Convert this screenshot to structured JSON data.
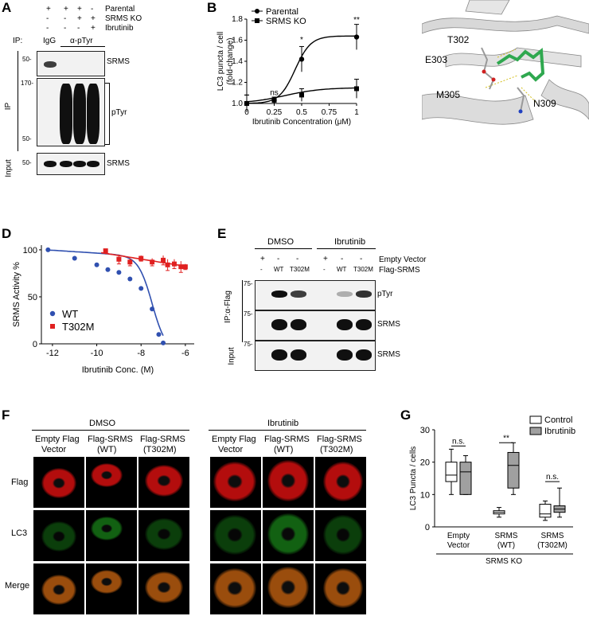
{
  "panel_A": {
    "label": "A",
    "conditions": [
      {
        "name": "Parental",
        "marks": [
          "+",
          "+",
          "+",
          "-"
        ]
      },
      {
        "name": "SRMS KO",
        "marks": [
          "-",
          "-",
          "+",
          "+"
        ]
      },
      {
        "name": "Ibrutinib",
        "marks": [
          "-",
          "-",
          "-",
          "+"
        ]
      }
    ],
    "ip_label": "IP:",
    "igg": "IgG",
    "antibody": "α-pTyr",
    "row_ip": "IP",
    "row_input": "Input",
    "blots": [
      {
        "mw": [
          "50-"
        ],
        "target": "SRMS"
      },
      {
        "mw": [
          "170-",
          "50-"
        ],
        "target": "pTyr"
      },
      {
        "mw": [
          "50-"
        ],
        "target": "SRMS"
      }
    ]
  },
  "panel_B": {
    "label": "B"
  },
  "panel_C": {
    "label": "C",
    "residues": [
      "T302",
      "E303",
      "M305",
      "N309"
    ]
  },
  "panel_D": {
    "label": "D"
  },
  "panel_E": {
    "label": "E",
    "groups": [
      "DMSO",
      "Ibrutinib"
    ],
    "row_labels": [
      "Empty Vector",
      "Flag-SRMS"
    ],
    "lane_marks_top": [
      "+",
      "-",
      "-",
      "+",
      "-",
      "-"
    ],
    "lane_marks_bottom": [
      "-",
      "WT",
      "T302M",
      "-",
      "WT",
      "T302M"
    ],
    "ip_label": "IP:α-Flag",
    "input_label": "Input",
    "blots": [
      {
        "mw": "75-",
        "target": "pTyr"
      },
      {
        "mw": "75-",
        "target": "SRMS"
      },
      {
        "mw": "75-",
        "target": "SRMS"
      }
    ]
  },
  "panel_F": {
    "label": "F",
    "treatments": [
      "DMSO",
      "Ibrutinib"
    ],
    "columns": [
      [
        "Empty Flag",
        "Vector"
      ],
      [
        "Flag-SRMS",
        "(WT)"
      ],
      [
        "Flag-SRMS",
        "(T302M)"
      ]
    ],
    "rows": [
      "Flag",
      "LC3",
      "Merge"
    ],
    "colors": {
      "flag": "#e01010",
      "lc3": "#20b020",
      "merge": "#c06010"
    }
  },
  "panel_G": {
    "label": "G"
  },
  "chart_data": [
    {
      "panel": "B",
      "type": "line",
      "xlabel": "Ibrutinib Concentration (μM)",
      "ylabel": "LC3 puncta / cell (fold-change)",
      "x_ticks": [
        "0",
        "0.25",
        "0.5",
        "0.75",
        "1"
      ],
      "y_ticks": [
        "1.0",
        "1.2",
        "1.4",
        "1.6",
        "1.8"
      ],
      "xlim": [
        0,
        1
      ],
      "ylim": [
        1.0,
        1.8
      ],
      "x": [
        0,
        0.25,
        0.5,
        1
      ],
      "series": [
        {
          "name": "Parental",
          "marker": "circle",
          "values": [
            1.0,
            1.03,
            1.42,
            1.63
          ],
          "errors": [
            0.08,
            0.03,
            0.12,
            0.12
          ]
        },
        {
          "name": "SRMS KO",
          "marker": "square",
          "values": [
            1.0,
            1.03,
            1.08,
            1.14
          ],
          "errors": [
            0.08,
            0.03,
            0.06,
            0.09
          ]
        }
      ],
      "annotations": [
        {
          "x": 0.25,
          "text": "ns"
        },
        {
          "x": 0.5,
          "text": "*"
        },
        {
          "x": 1,
          "text": "**"
        }
      ],
      "legend_position": "top-left"
    },
    {
      "panel": "D",
      "type": "scatter",
      "xlabel": "Ibrutinib Conc. (M)",
      "ylabel": "SRMS Activity %",
      "x_ticks": [
        "-12",
        "-10",
        "-8",
        "-6"
      ],
      "y_ticks": [
        "0",
        "50",
        "100"
      ],
      "xlim": [
        -12.5,
        -5.6
      ],
      "ylim": [
        0,
        105
      ],
      "series": [
        {
          "name": "WT",
          "color": "#3050b0",
          "marker": "circle",
          "x": [
            -12.2,
            -11,
            -10,
            -9.5,
            -9,
            -8.5,
            -8,
            -7.5,
            -7.2,
            -7
          ],
          "values": [
            100,
            91,
            84,
            79,
            76,
            69,
            59,
            37,
            10,
            1
          ]
        },
        {
          "name": "T302M",
          "color": "#e02020",
          "marker": "square",
          "x": [
            -9.6,
            -9,
            -8.5,
            -8,
            -7.5,
            -7,
            -6.8,
            -6.5,
            -6.2,
            -6
          ],
          "values": [
            99,
            90,
            87,
            91,
            87,
            89,
            84,
            85,
            82,
            82
          ],
          "errors": [
            0,
            5,
            4,
            3,
            4,
            5,
            6,
            5,
            6,
            3
          ]
        }
      ],
      "legend_position": "bottom-left"
    },
    {
      "panel": "G",
      "type": "box",
      "ylabel": "LC3 Puncta / cells",
      "y_ticks": [
        "0",
        "10",
        "20",
        "30"
      ],
      "ylim": [
        0,
        30
      ],
      "categories": [
        [
          "Empty",
          "Vector"
        ],
        [
          "SRMS",
          "(WT)"
        ],
        [
          "SRMS",
          "(T302M)"
        ]
      ],
      "group_label": "SRMS KO",
      "series": [
        {
          "name": "Control",
          "color": "#ffffff",
          "boxes": [
            {
              "min": 10,
              "q1": 14,
              "median": 16,
              "q3": 20,
              "max": 24
            },
            {
              "min": 3,
              "q1": 4,
              "median": 4.5,
              "q3": 5,
              "max": 6
            },
            {
              "min": 2,
              "q1": 3,
              "median": 4,
              "q3": 7,
              "max": 8
            }
          ]
        },
        {
          "name": "Ibrutinib",
          "color": "#a0a0a0",
          "boxes": [
            {
              "min": 10,
              "q1": 10,
              "median": 17,
              "q3": 20,
              "max": 22
            },
            {
              "min": 10,
              "q1": 12,
              "median": 19,
              "q3": 23,
              "max": 26
            },
            {
              "min": 3,
              "q1": 4.5,
              "median": 5.5,
              "q3": 6.5,
              "max": 12
            }
          ]
        }
      ],
      "annotations": [
        {
          "category": 0,
          "text": "n.s."
        },
        {
          "category": 1,
          "text": "**"
        },
        {
          "category": 2,
          "text": "n.s."
        }
      ],
      "legend_position": "top-right"
    }
  ]
}
